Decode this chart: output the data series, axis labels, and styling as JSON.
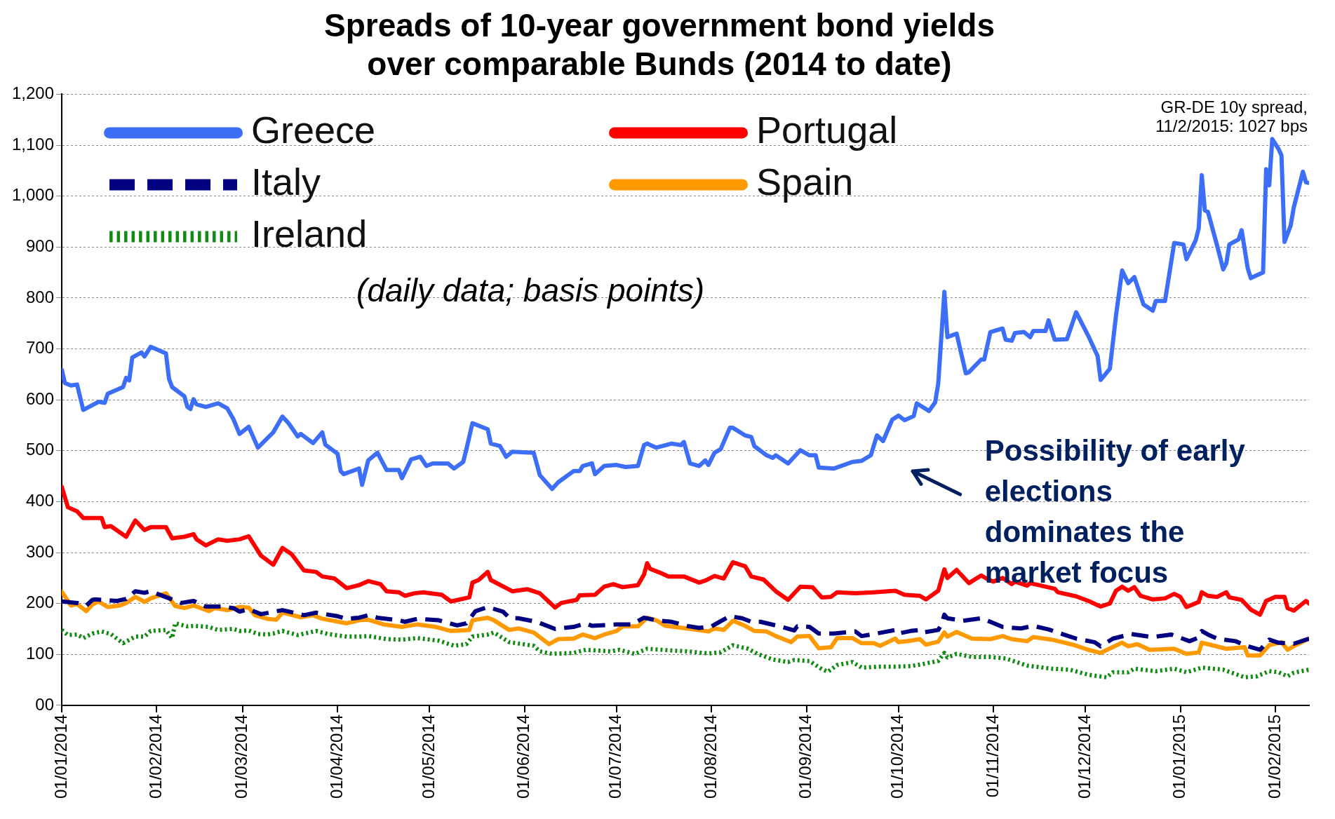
{
  "chart_data": {
    "type": "line",
    "title": "Spreads of 10-year government bond yields\nover comparable Bunds (2014 to date)",
    "subtitle": "(daily data; basis points)",
    "xlim": [
      "2014-01-01",
      "2015-02-12"
    ],
    "xticks": [
      {
        "value": "2014-01-01",
        "label": "01/01/2014"
      },
      {
        "value": "2014-02-01",
        "label": "01/02/2014"
      },
      {
        "value": "2014-03-01",
        "label": "01/03/2014"
      },
      {
        "value": "2014-04-01",
        "label": "01/04/2014"
      },
      {
        "value": "2014-05-01",
        "label": "01/05/2014"
      },
      {
        "value": "2014-06-01",
        "label": "01/06/2014"
      },
      {
        "value": "2014-07-01",
        "label": "01/07/2014"
      },
      {
        "value": "2014-08-01",
        "label": "01/08/2014"
      },
      {
        "value": "2014-09-01",
        "label": "01/09/2014"
      },
      {
        "value": "2014-10-01",
        "label": "01/10/2014"
      },
      {
        "value": "2014-11-01",
        "label": "01/11/2014"
      },
      {
        "value": "2014-12-01",
        "label": "01/12/2014"
      },
      {
        "value": "2015-01-01",
        "label": "01/01/2015"
      },
      {
        "value": "2015-02-01",
        "label": "01/02/2015"
      }
    ],
    "ylim": [
      0,
      1200
    ],
    "yticks": [
      {
        "value": 0,
        "label": "00"
      },
      100,
      200,
      300,
      400,
      500,
      600,
      700,
      800,
      900,
      {
        "value": 1000,
        "label": "1,000"
      },
      {
        "value": 1100,
        "label": "1,100"
      },
      {
        "value": 1200,
        "label": "1,200"
      }
    ],
    "grid": "y",
    "legend": "top left",
    "annotations": [
      "GR-DE 10y spread,\n11/2/2015: 1027 bps",
      "Possibility of early\nelections\ndominates the\nmarket focus"
    ],
    "series": [
      {
        "name": "Greece",
        "color": "#3d6ef7",
        "line_style": "solid",
        "x": [
          "2014-01-01",
          "2014-01-02",
          "2014-01-04",
          "2014-01-06",
          "2014-01-08",
          "2014-01-13",
          "2014-01-15",
          "2014-01-16",
          "2014-01-21",
          "2014-01-22",
          "2014-01-23",
          "2014-01-24",
          "2014-01-27",
          "2014-01-28",
          "2014-01-30",
          "2014-02-04",
          "2014-02-05",
          "2014-02-06",
          "2014-02-10",
          "2014-02-11",
          "2014-02-12",
          "2014-02-13",
          "2014-02-14",
          "2014-02-17",
          "2014-02-21",
          "2014-02-24",
          "2014-02-26",
          "2014-02-28",
          "2014-03-03",
          "2014-03-06",
          "2014-03-11",
          "2014-03-14",
          "2014-03-16",
          "2014-03-19",
          "2014-03-20",
          "2014-03-24",
          "2014-03-27",
          "2014-03-28",
          "2014-04-01",
          "2014-04-02",
          "2014-04-03",
          "2014-04-08",
          "2014-04-09",
          "2014-04-11",
          "2014-04-14",
          "2014-04-17",
          "2014-04-21",
          "2014-04-22",
          "2014-04-25",
          "2014-04-28",
          "2014-04-30",
          "2014-05-02",
          "2014-05-07",
          "2014-05-09",
          "2014-05-12",
          "2014-05-13",
          "2014-05-15",
          "2014-05-20",
          "2014-05-21",
          "2014-05-24",
          "2014-05-26",
          "2014-05-28",
          "2014-06-04",
          "2014-06-06",
          "2014-06-10",
          "2014-06-12",
          "2014-06-17",
          "2014-06-19",
          "2014-06-20",
          "2014-06-23",
          "2014-06-24",
          "2014-06-27",
          "2014-07-01",
          "2014-07-04",
          "2014-07-08",
          "2014-07-10",
          "2014-07-11",
          "2014-07-14",
          "2014-07-19",
          "2014-07-22",
          "2014-07-23",
          "2014-07-25",
          "2014-07-28",
          "2014-07-30",
          "2014-07-31",
          "2014-08-02",
          "2014-08-04",
          "2014-08-07",
          "2014-08-08",
          "2014-08-12",
          "2014-08-14",
          "2014-08-15",
          "2014-08-19",
          "2014-08-21",
          "2014-08-22",
          "2014-08-26",
          "2014-08-30",
          "2014-09-02",
          "2014-09-04",
          "2014-09-05",
          "2014-09-10",
          "2014-09-16",
          "2014-09-19",
          "2014-09-22",
          "2014-09-24",
          "2014-09-26",
          "2014-09-29",
          "2014-10-01",
          "2014-10-03",
          "2014-10-06",
          "2014-10-07",
          "2014-10-11",
          "2014-10-13",
          "2014-10-14",
          "2014-10-16",
          "2014-10-17",
          "2014-10-20",
          "2014-10-23",
          "2014-10-24",
          "2014-10-28",
          "2014-10-29",
          "2014-10-31",
          "2014-11-04",
          "2014-11-05",
          "2014-11-07",
          "2014-11-08",
          "2014-11-11",
          "2014-11-13",
          "2014-11-14",
          "2014-11-18",
          "2014-11-19",
          "2014-11-21",
          "2014-11-25",
          "2014-11-28",
          "2014-12-02",
          "2014-12-05",
          "2014-12-06",
          "2014-12-09",
          "2014-12-11",
          "2014-12-13",
          "2014-12-15",
          "2014-12-17",
          "2014-12-20",
          "2014-12-23",
          "2014-12-24",
          "2014-12-27",
          "2014-12-30",
          "2015-01-02",
          "2015-01-03",
          "2015-01-06",
          "2015-01-07",
          "2015-01-08",
          "2015-01-09",
          "2015-01-10",
          "2015-01-13",
          "2015-01-15",
          "2015-01-16",
          "2015-01-17",
          "2015-01-20",
          "2015-01-21",
          "2015-01-23",
          "2015-01-24",
          "2015-01-28",
          "2015-01-29",
          "2015-01-30",
          "2015-01-31",
          "2015-02-02",
          "2015-02-03",
          "2015-02-04",
          "2015-02-06",
          "2015-02-07",
          "2015-02-10",
          "2015-02-11",
          "2015-02-12"
        ],
        "values": [
          659,
          633,
          628,
          630,
          580,
          596,
          594,
          612,
          625,
          643,
          638,
          683,
          693,
          685,
          704,
          691,
          641,
          625,
          607,
          586,
          582,
          601,
          591,
          586,
          593,
          583,
          562,
          533,
          547,
          506,
          536,
          567,
          554,
          528,
          533,
          515,
          536,
          512,
          494,
          460,
          454,
          465,
          433,
          481,
          496,
          462,
          462,
          446,
          483,
          488,
          470,
          475,
          475,
          465,
          478,
          502,
          554,
          542,
          514,
          509,
          488,
          498,
          496,
          452,
          425,
          438,
          460,
          460,
          470,
          475,
          454,
          470,
          472,
          468,
          470,
          511,
          514,
          506,
          514,
          511,
          517,
          475,
          470,
          481,
          472,
          496,
          503,
          545,
          545,
          530,
          527,
          509,
          491,
          486,
          491,
          475,
          501,
          491,
          491,
          467,
          465,
          478,
          480,
          491,
          530,
          519,
          561,
          569,
          560,
          568,
          593,
          578,
          595,
          632,
          812,
          723,
          730,
          652,
          654,
          679,
          679,
          733,
          740,
          718,
          716,
          731,
          733,
          723,
          735,
          735,
          756,
          718,
          719,
          772,
          725,
          686,
          639,
          661,
          765,
          854,
          829,
          841,
          787,
          775,
          794,
          794,
          908,
          905,
          876,
          913,
          937,
          1041,
          972,
          969,
          903,
          856,
          868,
          905,
          915,
          933,
          858,
          839,
          850,
          1053,
          1021,
          1112,
          1093,
          1080,
          910,
          942,
          977,
          1048,
          1027,
          1026
        ]
      },
      {
        "name": "Portugal",
        "color": "#ff0000",
        "line_style": "solid",
        "x": [
          "2014-01-01",
          "2014-01-03",
          "2014-01-06",
          "2014-01-08",
          "2014-01-14",
          "2014-01-15",
          "2014-01-17",
          "2014-01-22",
          "2014-01-25",
          "2014-01-28",
          "2014-01-30",
          "2014-02-04",
          "2014-02-06",
          "2014-02-10",
          "2014-02-13",
          "2014-02-14",
          "2014-02-17",
          "2014-02-21",
          "2014-02-24",
          "2014-02-28",
          "2014-03-03",
          "2014-03-07",
          "2014-03-11",
          "2014-03-14",
          "2014-03-17",
          "2014-03-21",
          "2014-03-25",
          "2014-03-27",
          "2014-03-31",
          "2014-04-04",
          "2014-04-08",
          "2014-04-11",
          "2014-04-15",
          "2014-04-17",
          "2014-04-21",
          "2014-04-23",
          "2014-04-26",
          "2014-04-29",
          "2014-05-05",
          "2014-05-08",
          "2014-05-14",
          "2014-05-15",
          "2014-05-17",
          "2014-05-20",
          "2014-05-21",
          "2014-05-28",
          "2014-06-02",
          "2014-06-06",
          "2014-06-11",
          "2014-06-13",
          "2014-06-18",
          "2014-06-19",
          "2014-06-24",
          "2014-06-27",
          "2014-06-30",
          "2014-07-03",
          "2014-07-08",
          "2014-07-10",
          "2014-07-11",
          "2014-07-12",
          "2014-07-15",
          "2014-07-18",
          "2014-07-23",
          "2014-07-28",
          "2014-07-30",
          "2014-08-02",
          "2014-08-05",
          "2014-08-08",
          "2014-08-12",
          "2014-08-14",
          "2014-08-18",
          "2014-08-22",
          "2014-08-26",
          "2014-08-30",
          "2014-09-03",
          "2014-09-06",
          "2014-09-09",
          "2014-09-11",
          "2014-09-17",
          "2014-09-23",
          "2014-09-30",
          "2014-10-03",
          "2014-10-08",
          "2014-10-10",
          "2014-10-14",
          "2014-10-16",
          "2014-10-17",
          "2014-10-20",
          "2014-10-24",
          "2014-10-28",
          "2014-10-30",
          "2014-11-01",
          "2014-11-04",
          "2014-11-07",
          "2014-11-08",
          "2014-11-12",
          "2014-11-13",
          "2014-11-21",
          "2014-11-22",
          "2014-11-28",
          "2014-12-02",
          "2014-12-06",
          "2014-12-09",
          "2014-12-11",
          "2014-12-13",
          "2014-12-15",
          "2014-12-17",
          "2014-12-19",
          "2014-12-23",
          "2014-12-27",
          "2014-12-30",
          "2015-01-01",
          "2015-01-03",
          "2015-01-07",
          "2015-01-08",
          "2015-01-10",
          "2015-01-13",
          "2015-01-16",
          "2015-01-17",
          "2015-01-21",
          "2015-01-24",
          "2015-01-27",
          "2015-01-29",
          "2015-02-01",
          "2015-02-04",
          "2015-02-05",
          "2015-02-07",
          "2015-02-11",
          "2015-02-12"
        ],
        "values": [
          429,
          389,
          381,
          368,
          368,
          350,
          352,
          331,
          363,
          344,
          350,
          350,
          328,
          331,
          336,
          326,
          314,
          326,
          323,
          326,
          332,
          294,
          276,
          309,
          297,
          265,
          262,
          253,
          249,
          230,
          236,
          244,
          238,
          224,
          222,
          215,
          220,
          222,
          217,
          204,
          212,
          241,
          246,
          262,
          246,
          224,
          228,
          220,
          192,
          201,
          207,
          216,
          217,
          233,
          238,
          232,
          236,
          257,
          279,
          268,
          261,
          253,
          253,
          241,
          245,
          254,
          249,
          281,
          273,
          253,
          247,
          224,
          207,
          233,
          232,
          212,
          213,
          222,
          220,
          222,
          225,
          217,
          215,
          208,
          225,
          267,
          250,
          266,
          240,
          255,
          248,
          243,
          250,
          238,
          243,
          235,
          240,
          229,
          222,
          214,
          205,
          194,
          200,
          225,
          233,
          225,
          232,
          215,
          208,
          210,
          219,
          213,
          193,
          203,
          222,
          215,
          213,
          222,
          212,
          207,
          188,
          178,
          205,
          213,
          213,
          191,
          186,
          205,
          200
        ]
      },
      {
        "name": "Italy",
        "color": "#000080",
        "line_style": "dashed",
        "x": [
          "2014-01-01",
          "2014-01-06",
          "2014-01-09",
          "2014-01-11",
          "2014-01-12",
          "2014-01-19",
          "2014-01-22",
          "2014-01-25",
          "2014-01-28",
          "2014-01-30",
          "2014-02-06",
          "2014-02-09",
          "2014-02-13",
          "2014-02-17",
          "2014-02-22",
          "2014-02-26",
          "2014-02-28",
          "2014-03-03",
          "2014-03-07",
          "2014-03-14",
          "2014-03-19",
          "2014-03-21",
          "2014-03-25",
          "2014-04-01",
          "2014-04-04",
          "2014-04-08",
          "2014-04-11",
          "2014-04-14",
          "2014-04-21",
          "2014-04-23",
          "2014-04-27",
          "2014-05-04",
          "2014-05-10",
          "2014-05-13",
          "2014-05-16",
          "2014-05-20",
          "2014-05-25",
          "2014-05-27",
          "2014-05-30",
          "2014-06-05",
          "2014-06-11",
          "2014-06-17",
          "2014-06-21",
          "2014-06-23",
          "2014-07-01",
          "2014-07-06",
          "2014-07-10",
          "2014-07-14",
          "2014-07-19",
          "2014-07-24",
          "2014-07-28",
          "2014-08-01",
          "2014-08-07",
          "2014-08-11",
          "2014-08-14",
          "2014-08-17",
          "2014-08-24",
          "2014-08-28",
          "2014-08-29",
          "2014-09-02",
          "2014-09-05",
          "2014-09-10",
          "2014-09-17",
          "2014-09-19",
          "2014-09-23",
          "2014-09-30",
          "2014-10-01",
          "2014-10-05",
          "2014-10-08",
          "2014-10-09",
          "2014-10-14",
          "2014-10-15",
          "2014-10-16",
          "2014-10-17",
          "2014-10-22",
          "2014-10-28",
          "2014-10-31",
          "2014-11-04",
          "2014-11-10",
          "2014-11-14",
          "2014-11-19",
          "2014-11-22",
          "2014-11-28",
          "2014-12-04",
          "2014-12-06",
          "2014-12-10",
          "2014-12-16",
          "2014-12-23",
          "2014-12-29",
          "2015-01-04",
          "2015-01-07",
          "2015-01-08",
          "2015-01-10",
          "2015-01-13",
          "2015-01-19",
          "2015-01-23",
          "2015-01-27",
          "2015-01-30",
          "2015-02-02",
          "2015-02-07",
          "2015-02-12"
        ],
        "values": [
          204,
          201,
          196,
          207,
          208,
          205,
          209,
          224,
          221,
          224,
          208,
          201,
          205,
          194,
          194,
          191,
          184,
          189,
          179,
          187,
          180,
          177,
          182,
          175,
          170,
          172,
          177,
          172,
          167,
          164,
          170,
          167,
          157,
          161,
          185,
          193,
          184,
          172,
          171,
          164,
          150,
          154,
          161,
          156,
          159,
          159,
          172,
          167,
          164,
          156,
          152,
          155,
          175,
          171,
          164,
          164,
          154,
          147,
          155,
          154,
          141,
          141,
          145,
          136,
          140,
          148,
          141,
          146,
          148,
          143,
          148,
          158,
          178,
          171,
          166,
          171,
          164,
          154,
          151,
          156,
          149,
          143,
          131,
          124,
          116,
          131,
          140,
          134,
          139,
          126,
          133,
          146,
          139,
          131,
          126,
          116,
          109,
          129,
          123,
          121,
          131
        ]
      },
      {
        "name": "Spain",
        "color": "#ff9900",
        "line_style": "solid",
        "x": [
          "2014-01-01",
          "2014-01-04",
          "2014-01-06",
          "2014-01-09",
          "2014-01-11",
          "2014-01-13",
          "2014-01-16",
          "2014-01-20",
          "2014-01-22",
          "2014-01-25",
          "2014-01-28",
          "2014-01-30",
          "2014-02-04",
          "2014-02-07",
          "2014-02-10",
          "2014-02-13",
          "2014-02-18",
          "2014-02-20",
          "2014-02-24",
          "2014-02-28",
          "2014-03-03",
          "2014-03-05",
          "2014-03-09",
          "2014-03-12",
          "2014-03-14",
          "2014-03-20",
          "2014-03-24",
          "2014-03-27",
          "2014-04-04",
          "2014-04-08",
          "2014-04-11",
          "2014-04-16",
          "2014-04-22",
          "2014-04-27",
          "2014-05-03",
          "2014-05-08",
          "2014-05-14",
          "2014-05-15",
          "2014-05-20",
          "2014-05-22",
          "2014-05-27",
          "2014-05-30",
          "2014-06-04",
          "2014-06-09",
          "2014-06-12",
          "2014-06-17",
          "2014-06-20",
          "2014-06-24",
          "2014-06-27",
          "2014-07-01",
          "2014-07-03",
          "2014-07-08",
          "2014-07-11",
          "2014-07-14",
          "2014-07-17",
          "2014-07-24",
          "2014-07-31",
          "2014-08-02",
          "2014-08-05",
          "2014-08-08",
          "2014-08-12",
          "2014-08-15",
          "2014-08-19",
          "2014-08-22",
          "2014-08-27",
          "2014-08-29",
          "2014-09-02",
          "2014-09-05",
          "2014-09-09",
          "2014-09-11",
          "2014-09-16",
          "2014-09-19",
          "2014-09-23",
          "2014-09-25",
          "2014-09-30",
          "2014-10-01",
          "2014-10-05",
          "2014-10-08",
          "2014-10-10",
          "2014-10-14",
          "2014-10-16",
          "2014-10-17",
          "2014-10-20",
          "2014-10-25",
          "2014-10-31",
          "2014-11-04",
          "2014-11-07",
          "2014-11-12",
          "2014-11-14",
          "2014-11-20",
          "2014-11-27",
          "2014-12-02",
          "2014-12-06",
          "2014-12-13",
          "2014-12-15",
          "2014-12-18",
          "2014-12-22",
          "2014-12-30",
          "2015-01-03",
          "2015-01-07",
          "2015-01-08",
          "2015-01-10",
          "2015-01-16",
          "2015-01-22",
          "2015-01-23",
          "2015-01-27",
          "2015-01-30",
          "2015-02-03",
          "2015-02-05",
          "2015-02-07",
          "2015-02-12"
        ],
        "values": [
          223,
          196,
          199,
          185,
          198,
          204,
          193,
          196,
          201,
          213,
          203,
          210,
          220,
          195,
          191,
          196,
          185,
          191,
          187,
          193,
          192,
          177,
          170,
          168,
          182,
          173,
          177,
          170,
          161,
          167,
          168,
          159,
          154,
          159,
          154,
          146,
          148,
          167,
          172,
          167,
          148,
          151,
          143,
          120,
          130,
          131,
          139,
          132,
          139,
          146,
          155,
          155,
          172,
          167,
          156,
          151,
          145,
          151,
          148,
          166,
          156,
          146,
          145,
          136,
          124,
          135,
          136,
          112,
          114,
          132,
          132,
          122,
          122,
          117,
          131,
          124,
          127,
          130,
          119,
          125,
          143,
          135,
          144,
          131,
          130,
          136,
          130,
          126,
          134,
          129,
          119,
          109,
          103,
          123,
          116,
          120,
          109,
          111,
          101,
          104,
          123,
          120,
          111,
          114,
          98,
          98,
          118,
          124,
          109,
          116,
          131
        ]
      },
      {
        "name": "Ireland",
        "color": "#138a13",
        "line_style": "dotted",
        "x": [
          "2014-01-01",
          "2014-01-03",
          "2014-01-06",
          "2014-01-08",
          "2014-01-11",
          "2014-01-14",
          "2014-01-17",
          "2014-01-21",
          "2014-01-25",
          "2014-01-28",
          "2014-01-30",
          "2014-02-04",
          "2014-02-06",
          "2014-02-07",
          "2014-02-11",
          "2014-02-13",
          "2014-02-18",
          "2014-02-21",
          "2014-02-26",
          "2014-02-28",
          "2014-03-03",
          "2014-03-06",
          "2014-03-09",
          "2014-03-11",
          "2014-03-14",
          "2014-03-19",
          "2014-03-25",
          "2014-03-29",
          "2014-04-04",
          "2014-04-08",
          "2014-04-11",
          "2014-04-17",
          "2014-04-22",
          "2014-04-27",
          "2014-05-04",
          "2014-05-09",
          "2014-05-13",
          "2014-05-15",
          "2014-05-20",
          "2014-05-22",
          "2014-05-27",
          "2014-06-04",
          "2014-06-06",
          "2014-06-10",
          "2014-06-17",
          "2014-06-21",
          "2014-06-29",
          "2014-07-02",
          "2014-07-07",
          "2014-07-11",
          "2014-07-18",
          "2014-07-24",
          "2014-07-31",
          "2014-08-04",
          "2014-08-08",
          "2014-08-13",
          "2014-08-16",
          "2014-08-21",
          "2014-08-26",
          "2014-08-28",
          "2014-09-02",
          "2014-09-06",
          "2014-09-08",
          "2014-09-11",
          "2014-09-16",
          "2014-09-19",
          "2014-09-25",
          "2014-09-30",
          "2014-10-05",
          "2014-10-08",
          "2014-10-14",
          "2014-10-16",
          "2014-10-17",
          "2014-10-20",
          "2014-10-25",
          "2014-10-31",
          "2014-11-05",
          "2014-11-12",
          "2014-11-20",
          "2014-11-26",
          "2014-12-02",
          "2014-12-08",
          "2014-12-10",
          "2014-12-15",
          "2014-12-17",
          "2014-12-24",
          "2014-12-30",
          "2015-01-03",
          "2015-01-08",
          "2015-01-15",
          "2015-01-22",
          "2015-01-26",
          "2015-01-30",
          "2015-02-02",
          "2015-02-05",
          "2015-02-07",
          "2015-02-12"
        ],
        "values": [
          148,
          138,
          139,
          132,
          141,
          145,
          140,
          122,
          135,
          135,
          146,
          148,
          132,
          161,
          155,
          156,
          154,
          148,
          150,
          146,
          147,
          140,
          139,
          141,
          146,
          138,
          146,
          140,
          135,
          135,
          136,
          130,
          129,
          132,
          127,
          117,
          120,
          135,
          139,
          143,
          124,
          117,
          106,
          101,
          103,
          109,
          106,
          109,
          101,
          111,
          108,
          106,
          102,
          104,
          118,
          111,
          101,
          90,
          85,
          89,
          87,
          71,
          66,
          79,
          85,
          74,
          76,
          76,
          77,
          80,
          87,
          103,
          94,
          101,
          95,
          95,
          92,
          78,
          72,
          70,
          60,
          55,
          65,
          65,
          72,
          67,
          72,
          65,
          74,
          70,
          55,
          57,
          67,
          65,
          57,
          64,
          70
        ]
      }
    ]
  }
}
